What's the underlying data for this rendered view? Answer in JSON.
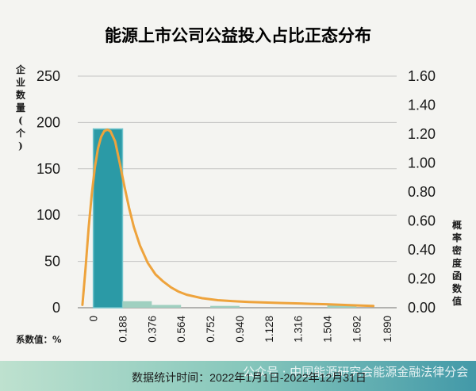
{
  "chart_data": {
    "type": "bar",
    "title": "能源上市公司公益投入占比正态分布",
    "left_axis_label": "企业数量(个)",
    "right_axis_label": "概率密度函数值",
    "x_note": "系数值：%",
    "footer": "数据统计时间：2022年1月1日-2022年12月31日",
    "watermark": "公众号 · 中国能源研究会能源金融法律分会",
    "y_left_ticks": [
      "0",
      "50",
      "100",
      "150",
      "200",
      "250"
    ],
    "y_left_range": [
      0,
      250
    ],
    "y_right_ticks": [
      "0.00",
      "0.20",
      "0.40",
      "0.60",
      "0.80",
      "1.00",
      "1.20",
      "1.40",
      "1.60"
    ],
    "y_right_range": [
      0,
      1.6
    ],
    "x_ticks": [
      "0",
      "0.188",
      "0.376",
      "0.564",
      "0.752",
      "0.940",
      "1.128",
      "1.316",
      "1.504",
      "1.692",
      "1.890"
    ],
    "histogram": {
      "bin_edges": [
        0,
        0.188,
        0.376,
        0.564,
        0.752,
        0.94,
        1.128,
        1.316,
        1.504,
        1.692,
        1.89
      ],
      "counts": [
        193,
        7,
        3,
        0,
        2,
        0,
        0,
        0,
        3,
        0
      ]
    },
    "density_curve": {
      "x": [
        -0.07,
        -0.05,
        -0.03,
        -0.01,
        0.01,
        0.03,
        0.05,
        0.07,
        0.09,
        0.11,
        0.14,
        0.17,
        0.2,
        0.23,
        0.26,
        0.3,
        0.35,
        0.4,
        0.45,
        0.5,
        0.55,
        0.6,
        0.7,
        0.8,
        0.9,
        1.0,
        1.1,
        1.2,
        1.3,
        1.4,
        1.5,
        1.6,
        1.7,
        1.8
      ],
      "y": [
        0.02,
        0.27,
        0.55,
        0.78,
        0.97,
        1.1,
        1.18,
        1.22,
        1.23,
        1.22,
        1.15,
        1.0,
        0.84,
        0.69,
        0.56,
        0.43,
        0.31,
        0.23,
        0.18,
        0.14,
        0.11,
        0.09,
        0.066,
        0.052,
        0.045,
        0.04,
        0.036,
        0.033,
        0.03,
        0.027,
        0.024,
        0.02,
        0.016,
        0.012
      ]
    },
    "colors": {
      "bar_main": "#2b9aa6",
      "bar_small": "#9fd0c0",
      "curve": "#eea33c",
      "grid": "#c4c4c4",
      "axis": "#8a8a8a"
    },
    "grid": true,
    "legend": "none"
  }
}
